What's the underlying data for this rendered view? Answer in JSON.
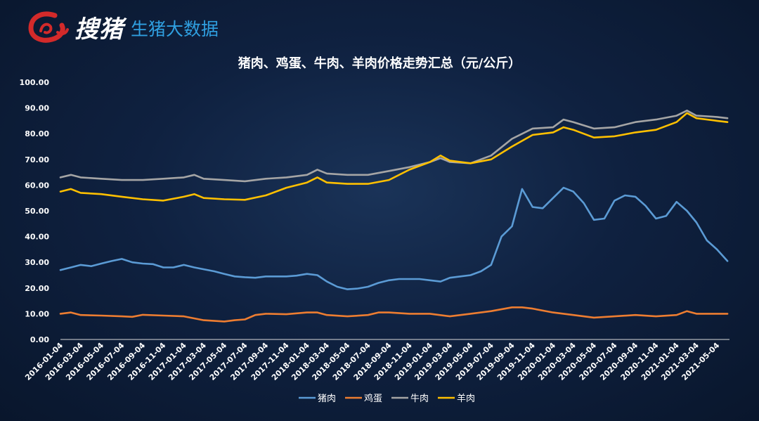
{
  "brand": {
    "name": "搜猪",
    "tagline": "生猪大数据",
    "logo_icon": "red-brush-circle-logo",
    "accent_color": "#d32a2a",
    "tagline_color": "#2f9fe0"
  },
  "chart_data": {
    "type": "line",
    "title": "猪肉、鸡蛋、牛肉、羊肉价格走势汇总（元/公斤）",
    "xlabel": "",
    "ylabel": "",
    "ylim": [
      0,
      100
    ],
    "yticks": [
      "0.00",
      "10.00",
      "20.00",
      "30.00",
      "40.00",
      "50.00",
      "60.00",
      "70.00",
      "80.00",
      "90.00",
      "100.00"
    ],
    "x_tick_labels": [
      "2016-01-04",
      "2016-03-04",
      "2016-05-04",
      "2016-07-04",
      "2016-09-04",
      "2016-11-04",
      "2017-01-04",
      "2017-03-04",
      "2017-05-04",
      "2017-07-04",
      "2017-09-04",
      "2017-11-04",
      "2018-01-04",
      "2018-03-04",
      "2018-05-04",
      "2018-07-04",
      "2018-09-04",
      "2018-11-04",
      "2019-01-04",
      "2019-03-04",
      "2019-05-04",
      "2019-07-04",
      "2019-09-04",
      "2019-11-04",
      "2020-01-04",
      "2020-03-04",
      "2020-05-04",
      "2020-07-04",
      "2020-09-04",
      "2020-11-04",
      "2021-01-04",
      "2021-03-04",
      "2021-05-04"
    ],
    "x_range": [
      "2016-01-04",
      "2021-06-10"
    ],
    "grid": false,
    "legend_position": "bottom",
    "series": [
      {
        "name": "猪肉",
        "color": "#5b9bd5",
        "points": [
          [
            "2016-01-04",
            27.0
          ],
          [
            "2016-02-04",
            28.0
          ],
          [
            "2016-03-04",
            29.0
          ],
          [
            "2016-04-04",
            28.5
          ],
          [
            "2016-05-04",
            29.5
          ],
          [
            "2016-06-04",
            30.5
          ],
          [
            "2016-07-04",
            31.3
          ],
          [
            "2016-08-04",
            30.0
          ],
          [
            "2016-09-04",
            29.5
          ],
          [
            "2016-10-04",
            29.3
          ],
          [
            "2016-11-04",
            28.0
          ],
          [
            "2016-12-04",
            28.0
          ],
          [
            "2017-01-04",
            29.0
          ],
          [
            "2017-02-04",
            28.0
          ],
          [
            "2017-03-04",
            27.3
          ],
          [
            "2017-04-04",
            26.5
          ],
          [
            "2017-05-04",
            25.5
          ],
          [
            "2017-06-04",
            24.5
          ],
          [
            "2017-07-04",
            24.2
          ],
          [
            "2017-08-04",
            24.0
          ],
          [
            "2017-09-04",
            24.5
          ],
          [
            "2017-10-04",
            24.5
          ],
          [
            "2017-11-04",
            24.5
          ],
          [
            "2017-12-04",
            24.8
          ],
          [
            "2018-01-04",
            25.5
          ],
          [
            "2018-02-04",
            25.0
          ],
          [
            "2018-03-04",
            22.5
          ],
          [
            "2018-04-04",
            20.5
          ],
          [
            "2018-05-04",
            19.5
          ],
          [
            "2018-06-04",
            19.8
          ],
          [
            "2018-07-04",
            20.5
          ],
          [
            "2018-08-04",
            22.0
          ],
          [
            "2018-09-04",
            23.0
          ],
          [
            "2018-10-04",
            23.5
          ],
          [
            "2018-11-04",
            23.5
          ],
          [
            "2018-12-04",
            23.5
          ],
          [
            "2019-01-04",
            23.0
          ],
          [
            "2019-02-04",
            22.5
          ],
          [
            "2019-03-04",
            24.0
          ],
          [
            "2019-04-04",
            24.5
          ],
          [
            "2019-05-04",
            25.0
          ],
          [
            "2019-06-04",
            26.5
          ],
          [
            "2019-07-04",
            29.0
          ],
          [
            "2019-08-04",
            40.0
          ],
          [
            "2019-09-04",
            44.0
          ],
          [
            "2019-10-04",
            58.5
          ],
          [
            "2019-11-04",
            51.5
          ],
          [
            "2019-12-04",
            51.0
          ],
          [
            "2020-01-04",
            55.0
          ],
          [
            "2020-02-04",
            59.0
          ],
          [
            "2020-03-04",
            57.5
          ],
          [
            "2020-04-04",
            53.0
          ],
          [
            "2020-05-04",
            46.5
          ],
          [
            "2020-06-04",
            47.0
          ],
          [
            "2020-07-04",
            54.0
          ],
          [
            "2020-08-04",
            56.0
          ],
          [
            "2020-09-04",
            55.5
          ],
          [
            "2020-10-04",
            52.0
          ],
          [
            "2020-11-04",
            47.0
          ],
          [
            "2020-12-04",
            48.0
          ],
          [
            "2021-01-04",
            53.5
          ],
          [
            "2021-02-04",
            50.0
          ],
          [
            "2021-03-04",
            45.5
          ],
          [
            "2021-04-04",
            38.5
          ],
          [
            "2021-05-04",
            35.0
          ],
          [
            "2021-06-04",
            30.5
          ]
        ]
      },
      {
        "name": "鸡蛋",
        "color": "#ed7d31",
        "points": [
          [
            "2016-01-04",
            10.0
          ],
          [
            "2016-02-04",
            10.5
          ],
          [
            "2016-03-04",
            9.5
          ],
          [
            "2016-05-04",
            9.3
          ],
          [
            "2016-07-04",
            9.0
          ],
          [
            "2016-08-04",
            8.8
          ],
          [
            "2016-09-04",
            9.6
          ],
          [
            "2016-11-04",
            9.3
          ],
          [
            "2017-01-04",
            9.0
          ],
          [
            "2017-03-04",
            7.5
          ],
          [
            "2017-05-04",
            7.0
          ],
          [
            "2017-06-04",
            7.5
          ],
          [
            "2017-07-04",
            7.8
          ],
          [
            "2017-08-04",
            9.5
          ],
          [
            "2017-09-04",
            10.0
          ],
          [
            "2017-11-04",
            9.8
          ],
          [
            "2018-01-04",
            10.5
          ],
          [
            "2018-02-04",
            10.5
          ],
          [
            "2018-03-04",
            9.5
          ],
          [
            "2018-05-04",
            9.0
          ],
          [
            "2018-07-04",
            9.5
          ],
          [
            "2018-08-04",
            10.5
          ],
          [
            "2018-09-04",
            10.5
          ],
          [
            "2018-11-04",
            10.0
          ],
          [
            "2019-01-04",
            10.0
          ],
          [
            "2019-03-04",
            9.0
          ],
          [
            "2019-05-04",
            10.0
          ],
          [
            "2019-07-04",
            11.0
          ],
          [
            "2019-09-04",
            12.5
          ],
          [
            "2019-10-04",
            12.5
          ],
          [
            "2019-11-04",
            12.0
          ],
          [
            "2020-01-04",
            10.5
          ],
          [
            "2020-03-04",
            9.5
          ],
          [
            "2020-05-04",
            8.5
          ],
          [
            "2020-07-04",
            9.0
          ],
          [
            "2020-09-04",
            9.5
          ],
          [
            "2020-11-04",
            9.0
          ],
          [
            "2021-01-04",
            9.5
          ],
          [
            "2021-02-04",
            11.0
          ],
          [
            "2021-03-04",
            10.0
          ],
          [
            "2021-05-04",
            10.0
          ],
          [
            "2021-06-04",
            10.0
          ]
        ]
      },
      {
        "name": "牛肉",
        "color": "#a5a5a5",
        "points": [
          [
            "2016-01-04",
            63.0
          ],
          [
            "2016-02-04",
            64.0
          ],
          [
            "2016-03-04",
            63.0
          ],
          [
            "2016-05-04",
            62.5
          ],
          [
            "2016-07-04",
            62.0
          ],
          [
            "2016-09-04",
            62.0
          ],
          [
            "2016-11-04",
            62.5
          ],
          [
            "2017-01-04",
            63.0
          ],
          [
            "2017-02-04",
            64.0
          ],
          [
            "2017-03-04",
            62.5
          ],
          [
            "2017-05-04",
            62.0
          ],
          [
            "2017-07-04",
            61.5
          ],
          [
            "2017-09-04",
            62.5
          ],
          [
            "2017-11-04",
            63.0
          ],
          [
            "2018-01-04",
            64.0
          ],
          [
            "2018-02-04",
            66.0
          ],
          [
            "2018-03-04",
            64.5
          ],
          [
            "2018-05-04",
            64.0
          ],
          [
            "2018-07-04",
            64.0
          ],
          [
            "2018-09-04",
            65.5
          ],
          [
            "2018-11-04",
            67.0
          ],
          [
            "2019-01-04",
            69.0
          ],
          [
            "2019-02-04",
            70.5
          ],
          [
            "2019-03-04",
            69.0
          ],
          [
            "2019-05-04",
            68.5
          ],
          [
            "2019-07-04",
            71.5
          ],
          [
            "2019-09-04",
            78.0
          ],
          [
            "2019-11-04",
            82.0
          ],
          [
            "2020-01-04",
            82.5
          ],
          [
            "2020-02-04",
            85.5
          ],
          [
            "2020-03-04",
            84.5
          ],
          [
            "2020-05-04",
            82.0
          ],
          [
            "2020-07-04",
            82.5
          ],
          [
            "2020-09-04",
            84.5
          ],
          [
            "2020-11-04",
            85.5
          ],
          [
            "2021-01-04",
            87.0
          ],
          [
            "2021-02-04",
            89.0
          ],
          [
            "2021-03-04",
            87.0
          ],
          [
            "2021-05-04",
            86.5
          ],
          [
            "2021-06-04",
            86.0
          ]
        ]
      },
      {
        "name": "羊肉",
        "color": "#ffc000",
        "points": [
          [
            "2016-01-04",
            57.5
          ],
          [
            "2016-02-04",
            58.5
          ],
          [
            "2016-03-04",
            57.0
          ],
          [
            "2016-05-04",
            56.5
          ],
          [
            "2016-07-04",
            55.5
          ],
          [
            "2016-09-04",
            54.5
          ],
          [
            "2016-11-04",
            54.0
          ],
          [
            "2017-01-04",
            55.5
          ],
          [
            "2017-02-04",
            56.5
          ],
          [
            "2017-03-04",
            55.0
          ],
          [
            "2017-05-04",
            54.5
          ],
          [
            "2017-07-04",
            54.3
          ],
          [
            "2017-09-04",
            56.0
          ],
          [
            "2017-11-04",
            59.0
          ],
          [
            "2018-01-04",
            61.0
          ],
          [
            "2018-02-04",
            63.0
          ],
          [
            "2018-03-04",
            61.0
          ],
          [
            "2018-05-04",
            60.5
          ],
          [
            "2018-07-04",
            60.5
          ],
          [
            "2018-09-04",
            62.0
          ],
          [
            "2018-11-04",
            66.0
          ],
          [
            "2019-01-04",
            69.0
          ],
          [
            "2019-02-04",
            71.5
          ],
          [
            "2019-03-04",
            69.5
          ],
          [
            "2019-05-04",
            68.5
          ],
          [
            "2019-07-04",
            70.0
          ],
          [
            "2019-09-04",
            75.0
          ],
          [
            "2019-11-04",
            79.5
          ],
          [
            "2020-01-04",
            80.5
          ],
          [
            "2020-02-04",
            82.5
          ],
          [
            "2020-03-04",
            81.5
          ],
          [
            "2020-05-04",
            78.5
          ],
          [
            "2020-07-04",
            79.0
          ],
          [
            "2020-09-04",
            80.5
          ],
          [
            "2020-11-04",
            81.5
          ],
          [
            "2021-01-04",
            84.5
          ],
          [
            "2021-02-04",
            88.0
          ],
          [
            "2021-03-04",
            86.0
          ],
          [
            "2021-05-04",
            85.0
          ],
          [
            "2021-06-04",
            84.5
          ]
        ]
      }
    ]
  }
}
